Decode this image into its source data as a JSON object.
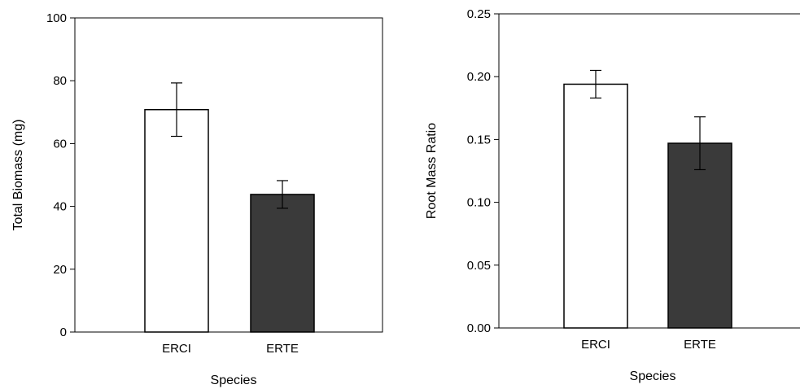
{
  "chart_data": [
    {
      "type": "bar",
      "categories": [
        "ERCI",
        "ERTE"
      ],
      "values": [
        70.8,
        43.8
      ],
      "errors": [
        8.5,
        4.4
      ],
      "bar_colors": [
        "#ffffff",
        "#3a3a3a"
      ],
      "xlabel": "Species",
      "ylabel": "Total Biomass (mg)",
      "ylim": [
        0,
        100
      ],
      "yticks": [
        "0",
        "20",
        "40",
        "60",
        "80",
        "100"
      ],
      "grid": false
    },
    {
      "type": "bar",
      "categories": [
        "ERCI",
        "ERTE"
      ],
      "values": [
        0.194,
        0.147
      ],
      "errors": [
        0.011,
        0.021
      ],
      "bar_colors": [
        "#ffffff",
        "#3a3a3a"
      ],
      "xlabel": "Species",
      "ylabel": "Root Mass Ratio",
      "ylim": [
        0,
        0.25
      ],
      "yticks": [
        "0.00",
        "0.05",
        "0.10",
        "0.15",
        "0.20",
        "0.25"
      ],
      "grid": false
    }
  ]
}
